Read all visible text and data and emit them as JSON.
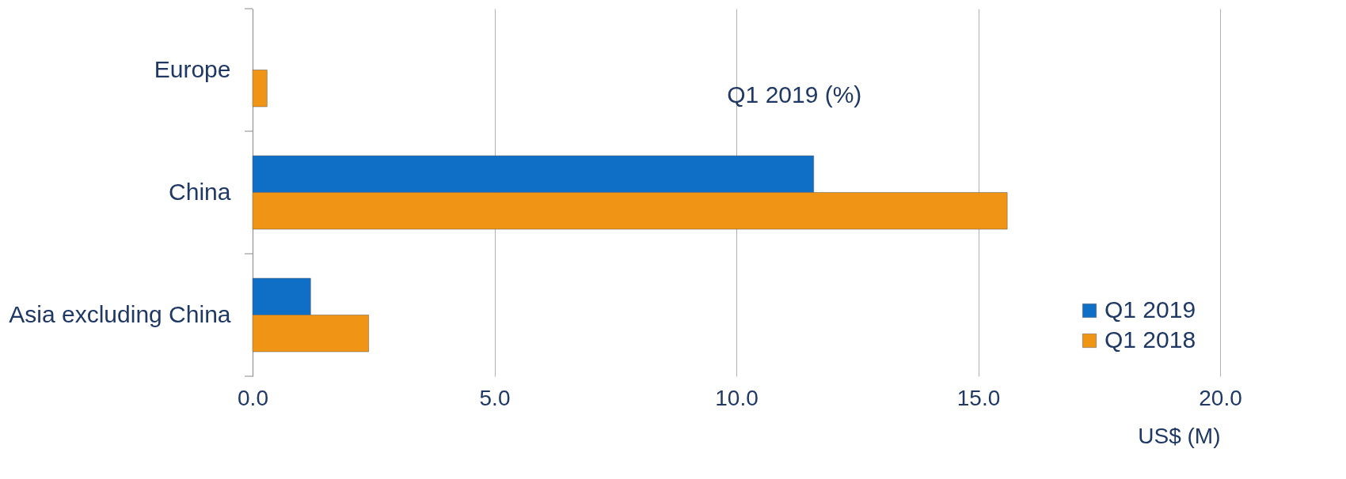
{
  "chart_data": {
    "type": "bar",
    "orientation": "horizontal",
    "categories": [
      "Europe",
      "China",
      "Asia excluding China"
    ],
    "series": [
      {
        "name": "Q1 2019",
        "color": "#0f6fc6",
        "values": [
          null,
          11.6,
          1.2
        ]
      },
      {
        "name": "Q1 2018",
        "color": "#f09415",
        "values": [
          0.3,
          15.6,
          2.4
        ]
      }
    ],
    "xlim": [
      0,
      20
    ],
    "xticks": [
      {
        "value": 0,
        "label": "0.0"
      },
      {
        "value": 5,
        "label": "5.0"
      },
      {
        "value": 10,
        "label": "10.0"
      },
      {
        "value": 15,
        "label": "15.0"
      },
      {
        "value": 20,
        "label": "20.0"
      }
    ],
    "xlabel": "US$ (M)",
    "annotations": [
      "Q1 2019 (%)"
    ],
    "grid": "x",
    "legend": "bottom right"
  }
}
